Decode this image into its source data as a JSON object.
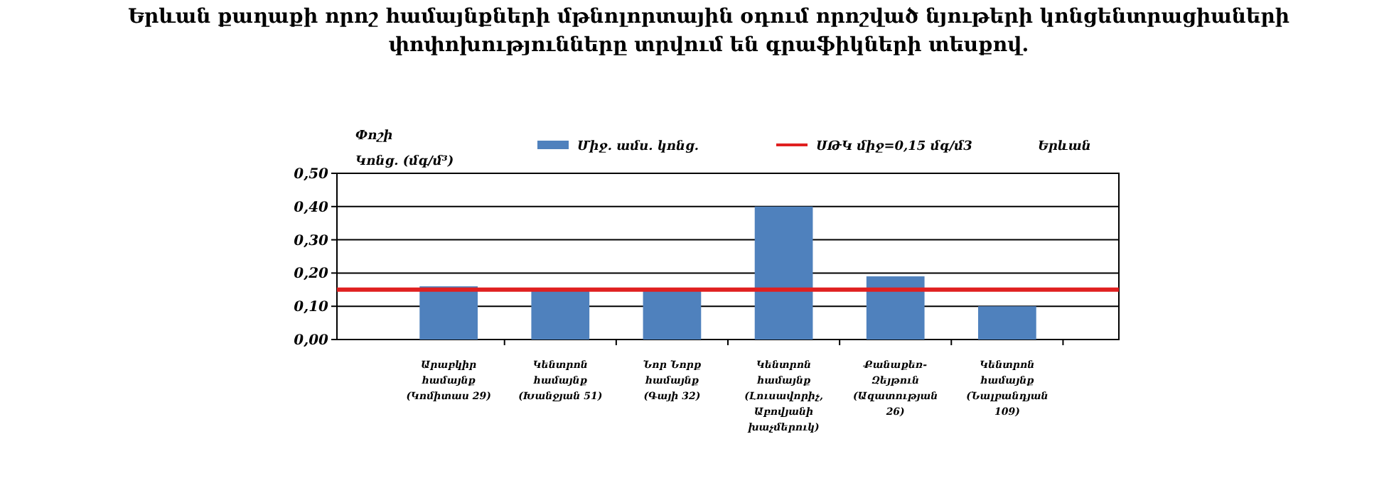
{
  "chart_data": {
    "type": "bar",
    "title": "Երևան քաղաքի որոշ համայնքների մթնոլորտային օդում որոշված նյութերի կոնցենտրացիաների փոփոխությունները տրվում են գրաֆիկների տեսքով.",
    "ylabel": "Փոշի Կոնց. (մգ/մ³)",
    "annotations": [
      "Երևան"
    ],
    "categories": [
      "Արաբկիր համայնք (Կոմիտաս 29)",
      "Կենտրոն համայնք (Խանջյան 51)",
      "Նոր Նորք համայնք (Գայի 32)",
      "Կենտրոն համայնք (Լուսավորիչ, Աբովյանի խաչմերուկ)",
      "Քանաքեռ-Զեյթուն (Ազատության 26)",
      "Կենտրոն համայնք (Նալբանդյան 109)"
    ],
    "series": [
      {
        "name": "Միջ. ամս. կոնց.",
        "color": "#4f81bd",
        "values": [
          0.16,
          0.15,
          0.15,
          0.4,
          0.19,
          0.1
        ]
      }
    ],
    "ylim": [
      0,
      0.5
    ],
    "yticks": [
      {
        "value": 0,
        "label": "0,00"
      },
      {
        "value": 0.1,
        "label": "0,10"
      },
      {
        "value": 0.2,
        "label": "0,20"
      },
      {
        "value": 0.3,
        "label": "0,30"
      },
      {
        "value": 0.4,
        "label": "0,40"
      },
      {
        "value": 0.5,
        "label": "0,50"
      }
    ],
    "ref_lines": [
      {
        "axis": "y",
        "value": 0.15,
        "label": "ՍԹԿ միջ=0,15 մգ/մ3",
        "color": "#e02020"
      }
    ],
    "grid": "y",
    "legend": "top"
  }
}
